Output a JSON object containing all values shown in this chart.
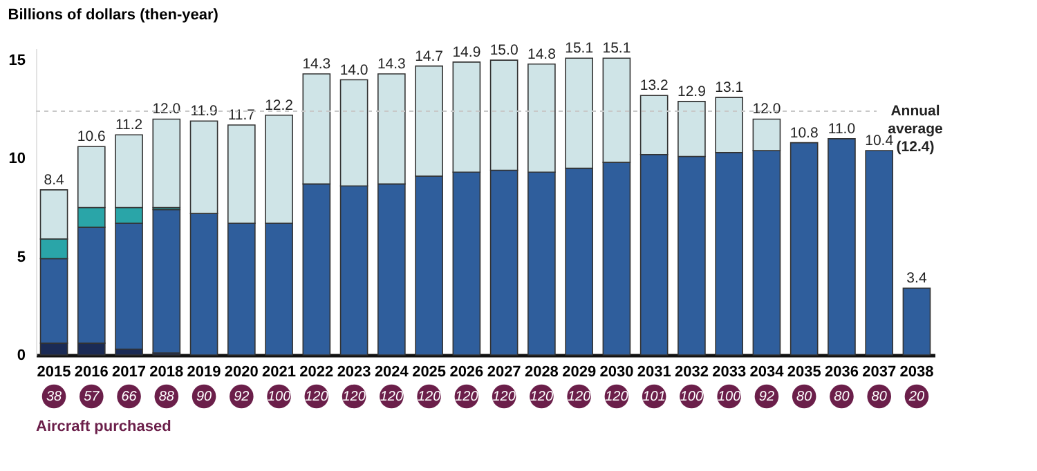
{
  "chart_data": {
    "type": "bar",
    "title": "Billions of dollars (then-year)",
    "stacked": true,
    "categories": [
      "2015",
      "2016",
      "2017",
      "2018",
      "2019",
      "2020",
      "2021",
      "2022",
      "2023",
      "2024",
      "2025",
      "2026",
      "2027",
      "2028",
      "2029",
      "2030",
      "2031",
      "2032",
      "2033",
      "2034",
      "2035",
      "2036",
      "2037",
      "2038"
    ],
    "series": [
      {
        "color": "#1b2b55",
        "values": [
          0.6,
          0.6,
          0.3,
          0.1,
          null,
          null,
          null,
          null,
          null,
          null,
          null,
          null,
          null,
          null,
          null,
          null,
          null,
          null,
          null,
          null,
          null,
          null,
          null,
          null
        ]
      },
      {
        "color": "#2f5e9c",
        "values": [
          4.3,
          5.9,
          6.4,
          7.3,
          7.2,
          6.7,
          6.7,
          8.7,
          8.6,
          8.7,
          9.1,
          9.3,
          9.4,
          9.3,
          9.5,
          9.8,
          10.2,
          10.1,
          10.3,
          10.4,
          10.8,
          11.0,
          10.4,
          3.4
        ]
      },
      {
        "color": "#2aa5a8",
        "values": [
          1.0,
          1.0,
          0.8,
          0.1,
          null,
          null,
          null,
          null,
          null,
          null,
          null,
          null,
          null,
          null,
          null,
          null,
          null,
          null,
          null,
          null,
          null,
          null,
          null,
          null
        ]
      },
      {
        "color": "#cfe4e7",
        "values": [
          2.5,
          3.1,
          3.7,
          4.5,
          4.7,
          5.0,
          5.5,
          5.6,
          5.4,
          5.6,
          5.6,
          5.6,
          5.6,
          5.5,
          5.6,
          5.3,
          3.0,
          2.8,
          2.8,
          1.6,
          null,
          null,
          null,
          null
        ]
      }
    ],
    "totals": [
      "8.4",
      "10.6",
      "11.2",
      "12.0",
      "11.9",
      "11.7",
      "12.2",
      "14.3",
      "14.0",
      "14.3",
      "14.7",
      "14.9",
      "15.0",
      "14.8",
      "15.1",
      "15.1",
      "13.2",
      "12.9",
      "13.1",
      "12.0",
      "10.8",
      "11.0",
      "10.4",
      "3.4"
    ],
    "ylim": [
      0,
      15.6
    ],
    "yticks": [
      0,
      5,
      10,
      15
    ],
    "grid": false,
    "legend": false,
    "ref_lines": [
      {
        "axis": "y",
        "value": 12.4,
        "label": "Annual average (12.4)",
        "color": "#c8c8c8",
        "line_style": "dashed"
      }
    ],
    "annotations": [
      "38",
      "57",
      "66",
      "88",
      "90",
      "92",
      "100",
      "120",
      "120",
      "120",
      "120",
      "120",
      "120",
      "120",
      "120",
      "120",
      "101",
      "100",
      "100",
      "92",
      "80",
      "80",
      "80",
      "20",
      "Aircraft purchased"
    ]
  }
}
